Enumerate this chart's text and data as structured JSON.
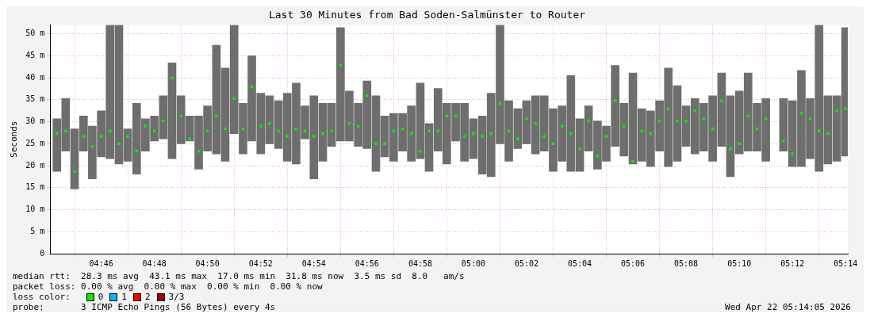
{
  "chart_data": {
    "type": "bar",
    "title": "Last 30 Minutes from Bad Soden-Salmünster to Router",
    "ylabel": "Seconds",
    "x": [
      4.7389,
      4.7444,
      4.75,
      4.7556,
      4.7611,
      4.7667,
      4.7722,
      4.7778,
      4.7833,
      4.7889,
      4.7944,
      4.8,
      4.8056,
      4.8111,
      4.8167,
      4.8222,
      4.8278,
      4.8333,
      4.8389,
      4.8444,
      4.85,
      4.8556,
      4.8611,
      4.8667,
      4.8722,
      4.8778,
      4.8833,
      4.8889,
      4.8944,
      4.9,
      4.9056,
      4.9111,
      4.9167,
      4.9222,
      4.9278,
      4.9333,
      4.9389,
      4.9444,
      4.95,
      4.9556,
      4.9611,
      4.9667,
      4.9722,
      4.9778,
      4.9833,
      4.9889,
      4.9944,
      5.0,
      5.0056,
      5.0111,
      5.0167,
      5.0222,
      5.0278,
      5.0333,
      5.0389,
      5.0444,
      5.05,
      5.0556,
      5.0611,
      5.0667,
      5.0722,
      5.0778,
      5.0833,
      5.0889,
      5.0944,
      5.1,
      5.1056,
      5.1111,
      5.1167,
      5.1222,
      5.1278,
      5.1333,
      5.1389,
      5.1444,
      5.15,
      5.1556,
      5.1611,
      5.1667,
      5.1722,
      5.1778,
      5.1833,
      5.1889,
      5.1944,
      5.2,
      5.2056,
      5.2111,
      5.2167,
      5.2222,
      5.2278,
      5.2333
    ],
    "series": [
      {
        "color": "#6e6e6e",
        "base": [
          18.7,
          23.3,
          14.7,
          23.3,
          17,
          22,
          21.6,
          20.4,
          21,
          18.1,
          23.3,
          25.6,
          26.1,
          21.6,
          25,
          25.6,
          19.2,
          23.3,
          22.7,
          21,
          27.3,
          22.7,
          25.6,
          22.7,
          25,
          23.9,
          21,
          20.4,
          26.1,
          17,
          21,
          24.4,
          25.6,
          25.6,
          24.4,
          23.9,
          18.7,
          22,
          21,
          23.3,
          21,
          21.6,
          18.7,
          23.3,
          20.4,
          25.6,
          21,
          21.6,
          18.1,
          17.5,
          25,
          21,
          23.9,
          25,
          22.7,
          23.3,
          18.7,
          21,
          18.7,
          18.7,
          23.3,
          19.2,
          21,
          24.4,
          22.2,
          20.4,
          21,
          19.8,
          23.3,
          19.8,
          21,
          24.4,
          22.7,
          23.3,
          21,
          24.4,
          17.5,
          22.7,
          23.3,
          23.3,
          21,
          null,
          23.3,
          19.8,
          19.8,
          21.6,
          18.7,
          20.4,
          21,
          22.2
        ],
        "values": [
          12.0,
          12.0,
          13.7,
          8.0,
          12.0,
          10.5,
          30.4,
          31.6,
          7.4,
          16.1,
          7.4,
          5.7,
          9.8,
          21.8,
          10.9,
          5.7,
          12.1,
          10.3,
          24.7,
          21.2,
          24.7,
          11.5,
          19.4,
          13.8,
          10.9,
          10.9,
          15.5,
          18.4,
          7.5,
          18.9,
          13.2,
          9.8,
          25.8,
          11.4,
          9.8,
          15.4,
          17.2,
          9.3,
          10.9,
          8.6,
          12.6,
          17.2,
          10.9,
          14.3,
          13.8,
          8.6,
          13.2,
          9.1,
          13.2,
          19.0,
          27.0,
          13.8,
          9.1,
          9.8,
          13.2,
          12.6,
          14.3,
          12.6,
          21.8,
          12.0,
          10.3,
          11.0,
          8.0,
          18.4,
          12.0,
          20.7,
          12.0,
          12.7,
          11.5,
          22.4,
          17.2,
          9.2,
          12.6,
          10.9,
          14.9,
          16.7,
          18.4,
          14.3,
          17.8,
          10.9,
          14.3,
          null,
          12.0,
          15.0,
          21.9,
          13.7,
          33.3,
          15.5,
          14.9,
          29.2
        ]
      },
      {
        "type": "scatter",
        "name": "0",
        "color": "#00ee00",
        "values": [
          27.3,
          27.9,
          18.7,
          26.7,
          24.4,
          26.7,
          27.9,
          25,
          26.7,
          23.3,
          29,
          27.9,
          30.2,
          39.9,
          31.3,
          26.1,
          23.3,
          27.9,
          31.3,
          28.4,
          35.3,
          28.4,
          38,
          29,
          29.6,
          27.9,
          26.7,
          28.4,
          27.9,
          26.7,
          27.3,
          27.9,
          42.8,
          29.6,
          29,
          35.9,
          25,
          25,
          27.9,
          28.4,
          27.3,
          23.3,
          27.9,
          27.9,
          31.3,
          31.3,
          26.7,
          27.3,
          26.7,
          27.3,
          34.2,
          27.9,
          26.1,
          30.7,
          29.6,
          26.7,
          25,
          29,
          27.3,
          23.9,
          30.2,
          22.2,
          26.7,
          34.8,
          29,
          21,
          27.9,
          27.3,
          30.2,
          33,
          30.2,
          30.2,
          32.5,
          30.7,
          28.4,
          34.8,
          23.9,
          25,
          31.3,
          28.4,
          30.7,
          null,
          25.6,
          22.7,
          31.9,
          30.7,
          27.9,
          27.3,
          32.5,
          33
        ]
      },
      {
        "type": "scatter",
        "name": "1",
        "color": "#00b8ff",
        "values": [
          null,
          null,
          null,
          null,
          null,
          null,
          null,
          null,
          null,
          null,
          null,
          null,
          null,
          null,
          null,
          null,
          null,
          null,
          null,
          null,
          null,
          null,
          null,
          null,
          null,
          null,
          null,
          null,
          null,
          null,
          null,
          null,
          null,
          null,
          null,
          null,
          null,
          null,
          null,
          null,
          null,
          null,
          null,
          null,
          null,
          null,
          null,
          null,
          null,
          null,
          null,
          null,
          null,
          null,
          null,
          null,
          null,
          null,
          null,
          null,
          null,
          null,
          null,
          null,
          null,
          null,
          null,
          null,
          null,
          null,
          null,
          null,
          null,
          null,
          null,
          null,
          null,
          null,
          null,
          null,
          null,
          null,
          null,
          null,
          null,
          null,
          null,
          null,
          null,
          null
        ]
      },
      {
        "type": "scatter",
        "name": "2",
        "color": "#ff0000",
        "values": [
          null,
          null,
          null,
          null,
          null,
          null,
          null,
          null,
          null,
          null,
          null,
          null,
          null,
          null,
          null,
          null,
          null,
          null,
          null,
          null,
          null,
          null,
          null,
          null,
          null,
          null,
          null,
          null,
          null,
          null,
          null,
          null,
          null,
          null,
          null,
          null,
          null,
          null,
          null,
          null,
          null,
          null,
          null,
          null,
          null,
          null,
          null,
          null,
          null,
          null,
          null,
          null,
          null,
          null,
          null,
          null,
          null,
          null,
          null,
          null,
          null,
          null,
          null,
          null,
          null,
          null,
          null,
          null,
          null,
          null,
          null,
          null,
          null,
          null,
          null,
          null,
          null,
          null,
          null,
          null,
          null,
          null,
          null,
          null,
          null,
          null,
          null,
          null,
          null,
          null
        ]
      },
      {
        "type": "scatter",
        "name": "3/3",
        "color": "#a00000",
        "values": [
          null,
          null,
          null,
          null,
          null,
          null,
          null,
          null,
          null,
          null,
          null,
          null,
          null,
          null,
          null,
          null,
          null,
          null,
          null,
          null,
          null,
          null,
          null,
          null,
          null,
          null,
          null,
          null,
          null,
          null,
          null,
          null,
          null,
          null,
          null,
          null,
          null,
          null,
          null,
          null,
          null,
          null,
          null,
          null,
          null,
          null,
          null,
          null,
          null,
          null,
          null,
          null,
          null,
          null,
          null,
          null,
          null,
          null,
          null,
          null,
          null,
          null,
          null,
          null,
          null,
          null,
          null,
          null,
          null,
          null,
          null,
          null,
          null,
          null,
          null,
          null,
          null,
          null,
          null,
          null,
          null,
          null,
          null,
          null,
          null,
          null,
          null,
          null,
          null,
          null
        ]
      }
    ],
    "xlim": [
      4.7347,
      5.2347
    ],
    "xticks": [
      {
        "value": 4.7667,
        "label": "04:46"
      },
      {
        "value": 4.8,
        "label": "04:48"
      },
      {
        "value": 4.8333,
        "label": "04:50"
      },
      {
        "value": 4.8667,
        "label": "04:52"
      },
      {
        "value": 4.9,
        "label": "04:54"
      },
      {
        "value": 4.9333,
        "label": "04:56"
      },
      {
        "value": 4.9667,
        "label": "04:58"
      },
      {
        "value": 5.0,
        "label": "05:00"
      },
      {
        "value": 5.0333,
        "label": "05:02"
      },
      {
        "value": 5.0667,
        "label": "05:04"
      },
      {
        "value": 5.1,
        "label": "05:06"
      },
      {
        "value": 5.1333,
        "label": "05:08"
      },
      {
        "value": 5.1667,
        "label": "05:10"
      },
      {
        "value": 5.2,
        "label": "05:12"
      },
      {
        "value": 5.2333,
        "label": "05:14"
      }
    ],
    "ylim": [
      0,
      52
    ],
    "yticks": [
      0,
      {
        "value": 5,
        "label": "5 m"
      },
      {
        "value": 10,
        "label": "10 m"
      },
      {
        "value": 15,
        "label": "15 m"
      },
      {
        "value": 20,
        "label": "20 m"
      },
      {
        "value": 25,
        "label": "25 m"
      },
      {
        "value": 30,
        "label": "30 m"
      },
      {
        "value": 35,
        "label": "35 m"
      },
      {
        "value": 40,
        "label": "40 m"
      },
      {
        "value": 45,
        "label": "45 m"
      },
      {
        "value": 50,
        "label": "50 m"
      }
    ],
    "grid": true,
    "marker": "square",
    "legend": "bottom left",
    "legend_title": "loss color:",
    "annotations": [
      "median rtt:  28.3 ms avg  43.1 ms max  17.0 ms min  31.8 ms now  3.5 ms sd  8.0   am/s",
      "packet loss: 0.00 % avg  0.00 % max  0.00 % min  0.00 % now",
      "probe:       3 ICMP Echo Pings (56 Bytes) every 4s",
      "Wed Apr 22 05:14:05 2026"
    ]
  }
}
